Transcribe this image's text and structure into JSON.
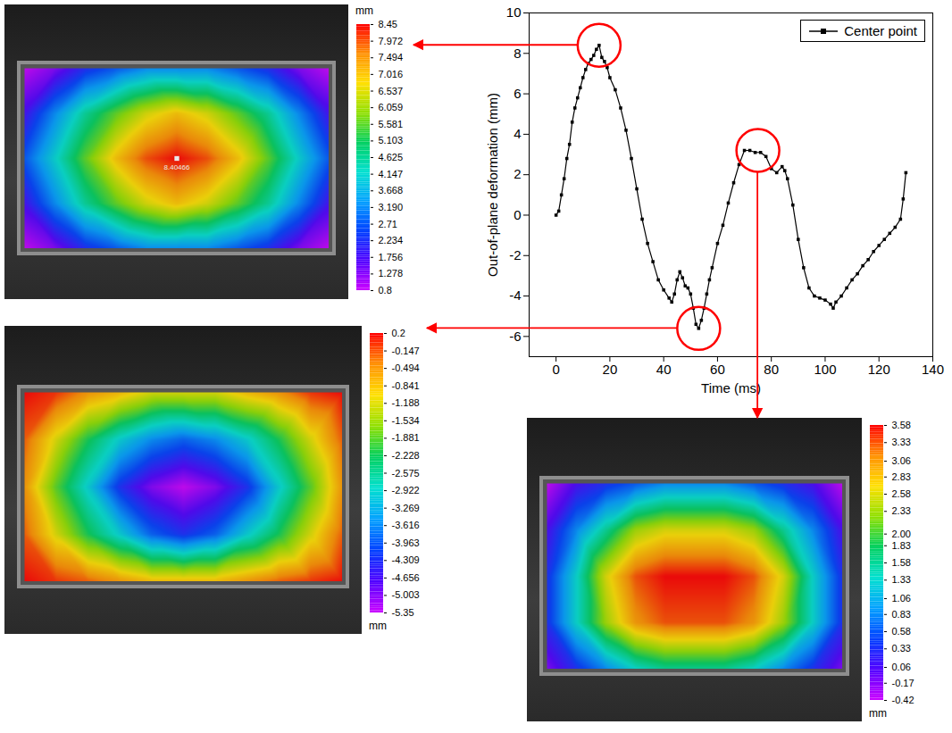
{
  "chart_data": [
    {
      "type": "line",
      "x_label": "Time (ms)",
      "y_label": "Out-of-plane deformation (mm)",
      "xlim": [
        -10,
        140
      ],
      "xticks": [
        0,
        20,
        40,
        60,
        80,
        100,
        120,
        140
      ],
      "ylim": [
        -7,
        10
      ],
      "yticks": [
        -6,
        -4,
        -2,
        0,
        2,
        4,
        6,
        8,
        10
      ],
      "legend": "top-right",
      "x": [
        0,
        1,
        2,
        3,
        4,
        5,
        6,
        7,
        8,
        9,
        10,
        11,
        12,
        13,
        14,
        15,
        16,
        17,
        18,
        19,
        20,
        22,
        24,
        26,
        28,
        30,
        32,
        34,
        36,
        38,
        40,
        42,
        43,
        44,
        45,
        46,
        47,
        48,
        49,
        50,
        51,
        52,
        53,
        54,
        55,
        56,
        57,
        58,
        60,
        62,
        64,
        66,
        68,
        70,
        72,
        74,
        76,
        78,
        80,
        82,
        84,
        85,
        86,
        88,
        90,
        92,
        94,
        96,
        98,
        100,
        102,
        103,
        104,
        106,
        108,
        110,
        112,
        114,
        116,
        118,
        120,
        122,
        124,
        126,
        128,
        129,
        130
      ],
      "series": [
        {
          "name": "Center point",
          "color": "#000000",
          "marker": "square",
          "line_style": "solid",
          "values": [
            0,
            0.2,
            1,
            1.8,
            2.8,
            3.5,
            4.6,
            5.3,
            5.8,
            6.3,
            6.8,
            7.2,
            7.5,
            7.7,
            7.9,
            8.2,
            8.4,
            7.8,
            7.6,
            7.3,
            6.8,
            6.2,
            5.3,
            4.2,
            2.8,
            1.3,
            -0.2,
            -1.4,
            -2.3,
            -3.2,
            -3.7,
            -4.1,
            -4.3,
            -3.9,
            -3.2,
            -2.8,
            -3.1,
            -3.5,
            -3.6,
            -3.9,
            -4.6,
            -5.4,
            -5.6,
            -5.2,
            -4.6,
            -3.9,
            -3.2,
            -2.6,
            -1.4,
            -0.5,
            0.6,
            1.6,
            2.5,
            3.2,
            3.2,
            3.1,
            3.1,
            2.9,
            2.3,
            2.1,
            2.4,
            2.2,
            1.8,
            0.5,
            -1.2,
            -2.6,
            -3.6,
            -4.0,
            -4.1,
            -4.2,
            -4.4,
            -4.6,
            -4.3,
            -4.0,
            -3.6,
            -3.2,
            -2.9,
            -2.5,
            -2.2,
            -1.8,
            -1.5,
            -1.2,
            -0.9,
            -0.6,
            -0.2,
            0.8,
            2.1
          ]
        }
      ],
      "highlights": {
        "x": [
          16,
          53,
          75
        ],
        "y": [
          8.4,
          -5.6,
          3.2
        ],
        "color": "#ff0000"
      }
    },
    {
      "type": "heatmap",
      "cells": [
        [
          0.8,
          1.3,
          2.2,
          2.7,
          3.2,
          3.2,
          3.2,
          2.7,
          2.2,
          1.3,
          0.8
        ],
        [
          1.8,
          3.2,
          4.6,
          5.6,
          6.5,
          7.0,
          6.5,
          5.6,
          4.6,
          3.2,
          1.8
        ],
        [
          2.7,
          4.1,
          5.6,
          7.0,
          8.0,
          8.45,
          8.0,
          7.0,
          5.6,
          4.1,
          2.7
        ],
        [
          1.8,
          3.2,
          4.6,
          5.6,
          6.5,
          7.0,
          6.5,
          5.6,
          4.6,
          3.2,
          1.8
        ],
        [
          0.8,
          1.3,
          2.2,
          2.7,
          3.2,
          3.2,
          3.2,
          2.7,
          2.2,
          1.3,
          0.8
        ]
      ],
      "marker_label": "8.40466",
      "colorbar": {
        "label": "mm",
        "range": [
          0.8,
          8.45
        ],
        "ticks": [
          8.45,
          7.972,
          7.494,
          7.016,
          6.537,
          6.059,
          5.581,
          5.103,
          4.625,
          4.147,
          3.668,
          {
            "value": 3.19,
            "label": "3.190"
          },
          2.71,
          2.234,
          1.756,
          1.278,
          0.8
        ]
      }
    },
    {
      "type": "heatmap",
      "cells": [
        [
          0.2,
          0,
          -0.5,
          -0.8,
          -1.2,
          -1.2,
          -1.2,
          -0.8,
          -0.5,
          0,
          0.2
        ],
        [
          -0.2,
          -1.2,
          -2.2,
          -3.0,
          -3.6,
          -3.9,
          -3.6,
          -3.0,
          -2.2,
          -1.2,
          -0.2
        ],
        [
          -0.5,
          -1.9,
          -3.0,
          -4.3,
          -5.0,
          -5.35,
          -5.0,
          -4.3,
          -3.0,
          -1.9,
          -0.5
        ],
        [
          -0.2,
          -1.2,
          -2.2,
          -3.0,
          -3.9,
          -4.3,
          -3.9,
          -3.0,
          -2.2,
          -1.2,
          -0.2
        ],
        [
          0.2,
          0,
          -0.2,
          -0.5,
          -0.8,
          -0.8,
          -0.8,
          -0.5,
          -0.2,
          0,
          0.2
        ]
      ],
      "colorbar": {
        "label": "mm",
        "range": [
          -5.35,
          0.2
        ],
        "ticks": [
          0.2,
          -0.147,
          -0.494,
          -0.841,
          -1.188,
          -1.534,
          -1.881,
          -2.228,
          -2.575,
          -2.922,
          -3.269,
          -3.616,
          -3.963,
          -4.309,
          -4.656,
          -5.003,
          -5.35
        ]
      }
    },
    {
      "type": "heatmap",
      "cells": [
        [
          -0.42,
          0.06,
          0.33,
          0.58,
          0.83,
          0.83,
          0.83,
          0.58,
          0.33,
          0.06,
          -0.42
        ],
        [
          0.06,
          0.83,
          1.58,
          2.33,
          2.58,
          2.58,
          2.58,
          2.33,
          1.58,
          0.83,
          0.06
        ],
        [
          0.33,
          1.33,
          2.58,
          3.33,
          3.58,
          3.58,
          3.58,
          3.33,
          2.58,
          1.33,
          0.33
        ],
        [
          0.33,
          1.33,
          2.33,
          3.06,
          3.33,
          3.33,
          3.33,
          3.06,
          2.33,
          1.33,
          0.33
        ],
        [
          -0.17,
          0.33,
          0.83,
          1.33,
          1.58,
          1.58,
          1.58,
          1.33,
          0.83,
          0.33,
          -0.17
        ]
      ],
      "colorbar": {
        "label": "mm",
        "range": [
          -0.42,
          3.58
        ],
        "ticks": [
          3.58,
          3.33,
          3.06,
          2.83,
          2.58,
          2.33,
          {
            "value": 2,
            "label": "2.00"
          },
          1.83,
          1.58,
          1.33,
          1.06,
          0.83,
          0.58,
          0.33,
          0.06,
          -0.17,
          -0.42
        ]
      }
    }
  ]
}
